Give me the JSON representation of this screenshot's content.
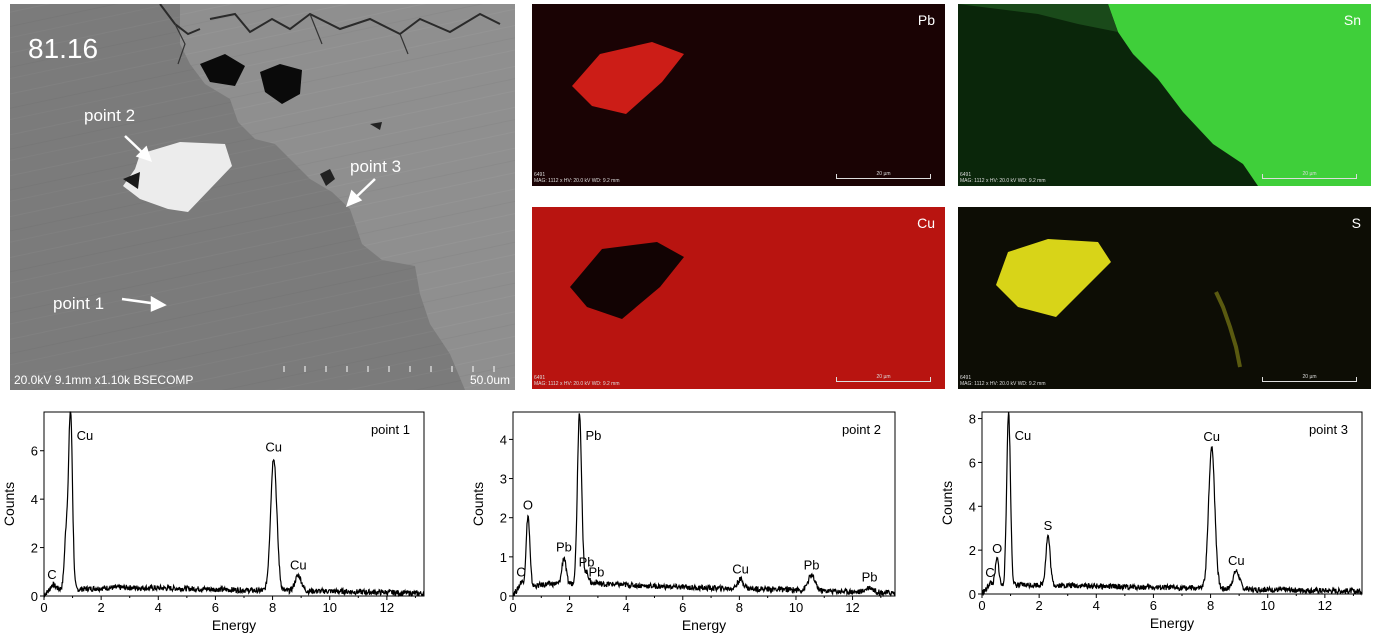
{
  "bse": {
    "sample_id": "81.16",
    "info": "20.0kV 9.1mm x1.10k BSECOMP",
    "scale_label": "50.0um",
    "points": [
      "point 1",
      "point 2",
      "point 3"
    ]
  },
  "maps": [
    {
      "element": "Pb",
      "color": "#e0201a",
      "background": "#1a0304",
      "footer_line1": "6491",
      "footer_line2": "MAG: 1112 x  HV: 20.0 kV  WD: 9.2 mm",
      "scale_label": "20 µm"
    },
    {
      "element": "Sn",
      "color": "#3fcf3a",
      "background": "#082008",
      "footer_line1": "6491",
      "footer_line2": "MAG: 1112 x  HV: 20.0 kV  WD: 9.2 mm",
      "scale_label": "20 µm"
    },
    {
      "element": "Cu",
      "color": "#d81e18",
      "background": "#b81410",
      "footer_line1": "6491",
      "footer_line2": "MAG: 1112 x  HV: 20.0 kV  WD: 9.2 mm",
      "scale_label": "20 µm"
    },
    {
      "element": "S",
      "color": "#d8d418",
      "background": "#0d0d05",
      "footer_line1": "6491",
      "footer_line2": "MAG: 1112 x  HV: 20.0 kV  WD: 9.2 mm",
      "scale_label": "20 µm"
    }
  ],
  "chart_data": [
    {
      "type": "line",
      "title": "point 1",
      "xlabel": "Energy",
      "ylabel": "Counts",
      "xlim": [
        0,
        13.3
      ],
      "ylim": [
        0,
        7.6
      ],
      "xticks": [
        0,
        2,
        4,
        6,
        8,
        10,
        12
      ],
      "yticks": [
        0,
        2,
        4,
        6
      ],
      "baseline": [
        [
          0,
          0.05
        ],
        [
          0.15,
          0.2
        ],
        [
          0.3,
          0.5
        ],
        [
          0.5,
          0.3
        ],
        [
          0.9,
          0.25
        ],
        [
          1.5,
          0.3
        ],
        [
          2.5,
          0.35
        ],
        [
          4,
          0.33
        ],
        [
          6,
          0.28
        ],
        [
          7.5,
          0.22
        ],
        [
          9,
          0.2
        ],
        [
          10,
          0.2
        ],
        [
          11,
          0.17
        ],
        [
          12,
          0.15
        ],
        [
          13.3,
          0.1
        ]
      ],
      "peaks": [
        {
          "label": "C",
          "x": 0.28,
          "y": 0.45
        },
        {
          "label": "Cu",
          "x": 0.93,
          "y": 7.6
        },
        {
          "label": "",
          "x": 0.78,
          "y": 2.6
        },
        {
          "label": "Cu",
          "x": 8.04,
          "y": 5.72
        },
        {
          "label": "Cu",
          "x": 8.9,
          "y": 0.85
        }
      ]
    },
    {
      "type": "line",
      "title": "point 2",
      "xlabel": "Energy",
      "ylabel": "Counts",
      "xlim": [
        0,
        13.5
      ],
      "ylim": [
        0,
        4.7
      ],
      "xticks": [
        0,
        2,
        4,
        6,
        8,
        10,
        12
      ],
      "yticks": [
        0,
        1,
        2,
        3,
        4
      ],
      "baseline": [
        [
          0,
          0.05
        ],
        [
          0.15,
          0.15
        ],
        [
          0.3,
          0.3
        ],
        [
          0.7,
          0.25
        ],
        [
          1.2,
          0.3
        ],
        [
          2,
          0.32
        ],
        [
          3.5,
          0.3
        ],
        [
          5,
          0.25
        ],
        [
          7,
          0.2
        ],
        [
          9,
          0.18
        ],
        [
          11,
          0.13
        ],
        [
          13.5,
          0.08
        ]
      ],
      "peaks": [
        {
          "label": "C",
          "x": 0.28,
          "y": 0.35
        },
        {
          "label": "O",
          "x": 0.53,
          "y": 2.05
        },
        {
          "label": "Pb",
          "x": 1.8,
          "y": 0.98
        },
        {
          "label": "Pb",
          "x": 2.35,
          "y": 4.7
        },
        {
          "label": "Pb",
          "x": 2.6,
          "y": 0.6
        },
        {
          "label": "Pb",
          "x": 2.95,
          "y": 0.35
        },
        {
          "label": "Cu",
          "x": 8.04,
          "y": 0.42
        },
        {
          "label": "Pb",
          "x": 10.55,
          "y": 0.52
        },
        {
          "label": "Pb",
          "x": 12.6,
          "y": 0.22
        }
      ]
    },
    {
      "type": "line",
      "title": "point 3",
      "xlabel": "Energy",
      "ylabel": "Counts",
      "xlim": [
        0,
        13.3
      ],
      "ylim": [
        0,
        8.3
      ],
      "xticks": [
        0,
        2,
        4,
        6,
        8,
        10,
        12
      ],
      "yticks": [
        0,
        2,
        4,
        6,
        8
      ],
      "baseline": [
        [
          0,
          0.05
        ],
        [
          0.15,
          0.2
        ],
        [
          0.3,
          0.4
        ],
        [
          0.7,
          0.35
        ],
        [
          1.2,
          0.4
        ],
        [
          2,
          0.42
        ],
        [
          3.5,
          0.38
        ],
        [
          5,
          0.32
        ],
        [
          7,
          0.28
        ],
        [
          9,
          0.22
        ],
        [
          11,
          0.18
        ],
        [
          13.3,
          0.12
        ]
      ],
      "peaks": [
        {
          "label": "C",
          "x": 0.28,
          "y": 0.5
        },
        {
          "label": "O",
          "x": 0.53,
          "y": 1.6
        },
        {
          "label": "Cu",
          "x": 0.93,
          "y": 8.3
        },
        {
          "label": "S",
          "x": 2.31,
          "y": 2.65
        },
        {
          "label": "Cu",
          "x": 8.04,
          "y": 6.7
        },
        {
          "label": "Cu",
          "x": 8.9,
          "y": 1.05
        }
      ]
    }
  ]
}
